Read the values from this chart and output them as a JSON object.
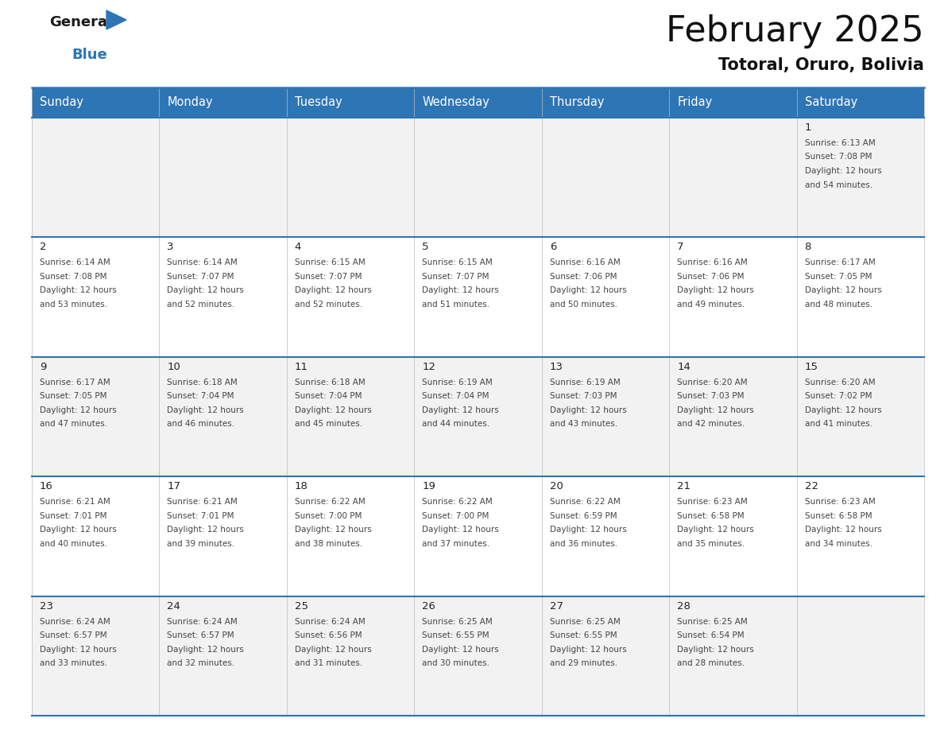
{
  "title": "February 2025",
  "subtitle": "Totoral, Oruro, Bolivia",
  "header_bg": "#2E75B6",
  "header_text_color": "#FFFFFF",
  "border_color": "#2E75B6",
  "text_color": "#333333",
  "days_of_week": [
    "Sunday",
    "Monday",
    "Tuesday",
    "Wednesday",
    "Thursday",
    "Friday",
    "Saturday"
  ],
  "calendar_data": [
    [
      {
        "day": null
      },
      {
        "day": null
      },
      {
        "day": null
      },
      {
        "day": null
      },
      {
        "day": null
      },
      {
        "day": null
      },
      {
        "day": 1,
        "sunrise": "6:13 AM",
        "sunset": "7:08 PM",
        "daylight_extra": "54 minutes."
      }
    ],
    [
      {
        "day": 2,
        "sunrise": "6:14 AM",
        "sunset": "7:08 PM",
        "daylight_extra": "53 minutes."
      },
      {
        "day": 3,
        "sunrise": "6:14 AM",
        "sunset": "7:07 PM",
        "daylight_extra": "52 minutes."
      },
      {
        "day": 4,
        "sunrise": "6:15 AM",
        "sunset": "7:07 PM",
        "daylight_extra": "52 minutes."
      },
      {
        "day": 5,
        "sunrise": "6:15 AM",
        "sunset": "7:07 PM",
        "daylight_extra": "51 minutes."
      },
      {
        "day": 6,
        "sunrise": "6:16 AM",
        "sunset": "7:06 PM",
        "daylight_extra": "50 minutes."
      },
      {
        "day": 7,
        "sunrise": "6:16 AM",
        "sunset": "7:06 PM",
        "daylight_extra": "49 minutes."
      },
      {
        "day": 8,
        "sunrise": "6:17 AM",
        "sunset": "7:05 PM",
        "daylight_extra": "48 minutes."
      }
    ],
    [
      {
        "day": 9,
        "sunrise": "6:17 AM",
        "sunset": "7:05 PM",
        "daylight_extra": "47 minutes."
      },
      {
        "day": 10,
        "sunrise": "6:18 AM",
        "sunset": "7:04 PM",
        "daylight_extra": "46 minutes."
      },
      {
        "day": 11,
        "sunrise": "6:18 AM",
        "sunset": "7:04 PM",
        "daylight_extra": "45 minutes."
      },
      {
        "day": 12,
        "sunrise": "6:19 AM",
        "sunset": "7:04 PM",
        "daylight_extra": "44 minutes."
      },
      {
        "day": 13,
        "sunrise": "6:19 AM",
        "sunset": "7:03 PM",
        "daylight_extra": "43 minutes."
      },
      {
        "day": 14,
        "sunrise": "6:20 AM",
        "sunset": "7:03 PM",
        "daylight_extra": "42 minutes."
      },
      {
        "day": 15,
        "sunrise": "6:20 AM",
        "sunset": "7:02 PM",
        "daylight_extra": "41 minutes."
      }
    ],
    [
      {
        "day": 16,
        "sunrise": "6:21 AM",
        "sunset": "7:01 PM",
        "daylight_extra": "40 minutes."
      },
      {
        "day": 17,
        "sunrise": "6:21 AM",
        "sunset": "7:01 PM",
        "daylight_extra": "39 minutes."
      },
      {
        "day": 18,
        "sunrise": "6:22 AM",
        "sunset": "7:00 PM",
        "daylight_extra": "38 minutes."
      },
      {
        "day": 19,
        "sunrise": "6:22 AM",
        "sunset": "7:00 PM",
        "daylight_extra": "37 minutes."
      },
      {
        "day": 20,
        "sunrise": "6:22 AM",
        "sunset": "6:59 PM",
        "daylight_extra": "36 minutes."
      },
      {
        "day": 21,
        "sunrise": "6:23 AM",
        "sunset": "6:58 PM",
        "daylight_extra": "35 minutes."
      },
      {
        "day": 22,
        "sunrise": "6:23 AM",
        "sunset": "6:58 PM",
        "daylight_extra": "34 minutes."
      }
    ],
    [
      {
        "day": 23,
        "sunrise": "6:24 AM",
        "sunset": "6:57 PM",
        "daylight_extra": "33 minutes."
      },
      {
        "day": 24,
        "sunrise": "6:24 AM",
        "sunset": "6:57 PM",
        "daylight_extra": "32 minutes."
      },
      {
        "day": 25,
        "sunrise": "6:24 AM",
        "sunset": "6:56 PM",
        "daylight_extra": "31 minutes."
      },
      {
        "day": 26,
        "sunrise": "6:25 AM",
        "sunset": "6:55 PM",
        "daylight_extra": "30 minutes."
      },
      {
        "day": 27,
        "sunrise": "6:25 AM",
        "sunset": "6:55 PM",
        "daylight_extra": "29 minutes."
      },
      {
        "day": 28,
        "sunrise": "6:25 AM",
        "sunset": "6:54 PM",
        "daylight_extra": "28 minutes."
      },
      {
        "day": null
      }
    ]
  ],
  "fig_width": 11.88,
  "fig_height": 9.18,
  "dpi": 100
}
